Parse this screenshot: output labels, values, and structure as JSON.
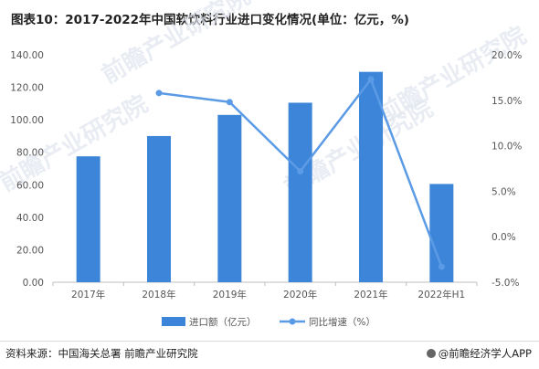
{
  "header": {
    "title": "图表10：2017-2022年中国软饮料行业进口变化情况(单位：亿元，%)"
  },
  "chart_data": {
    "type": "bar",
    "categories": [
      "2017年",
      "2018年",
      "2019年",
      "2020年",
      "2021年",
      "2022年H1"
    ],
    "series": [
      {
        "name": "进口额（亿元）",
        "type": "bar",
        "axis": "left",
        "values": [
          77.5,
          90.0,
          103.0,
          110.5,
          129.5,
          60.5
        ]
      },
      {
        "name": "同比增速（%）",
        "type": "line",
        "axis": "right",
        "values": [
          null,
          15.8,
          14.8,
          7.2,
          17.3,
          -3.3
        ]
      }
    ],
    "left_axis": {
      "min": 0,
      "max": 140,
      "step": 20,
      "ticks": [
        "0.00",
        "20.00",
        "40.00",
        "60.00",
        "80.00",
        "100.00",
        "120.00",
        "140.00"
      ]
    },
    "right_axis": {
      "min": -5,
      "max": 20,
      "step": 5,
      "ticks": [
        "-5.0%",
        "0.0%",
        "5.0%",
        "10.0%",
        "15.0%",
        "20.0%"
      ]
    },
    "grid": false,
    "legend_position": "bottom",
    "colors": {
      "bar": "#3d85d8",
      "line": "#5b9be6",
      "axis": "#bfbfbf",
      "text": "#555555"
    }
  },
  "watermark": "前瞻产业研究院",
  "footer": {
    "source": "资料来源：中国海关总署 前瞻产业研究院",
    "brand": "@前瞻经济学人APP"
  }
}
